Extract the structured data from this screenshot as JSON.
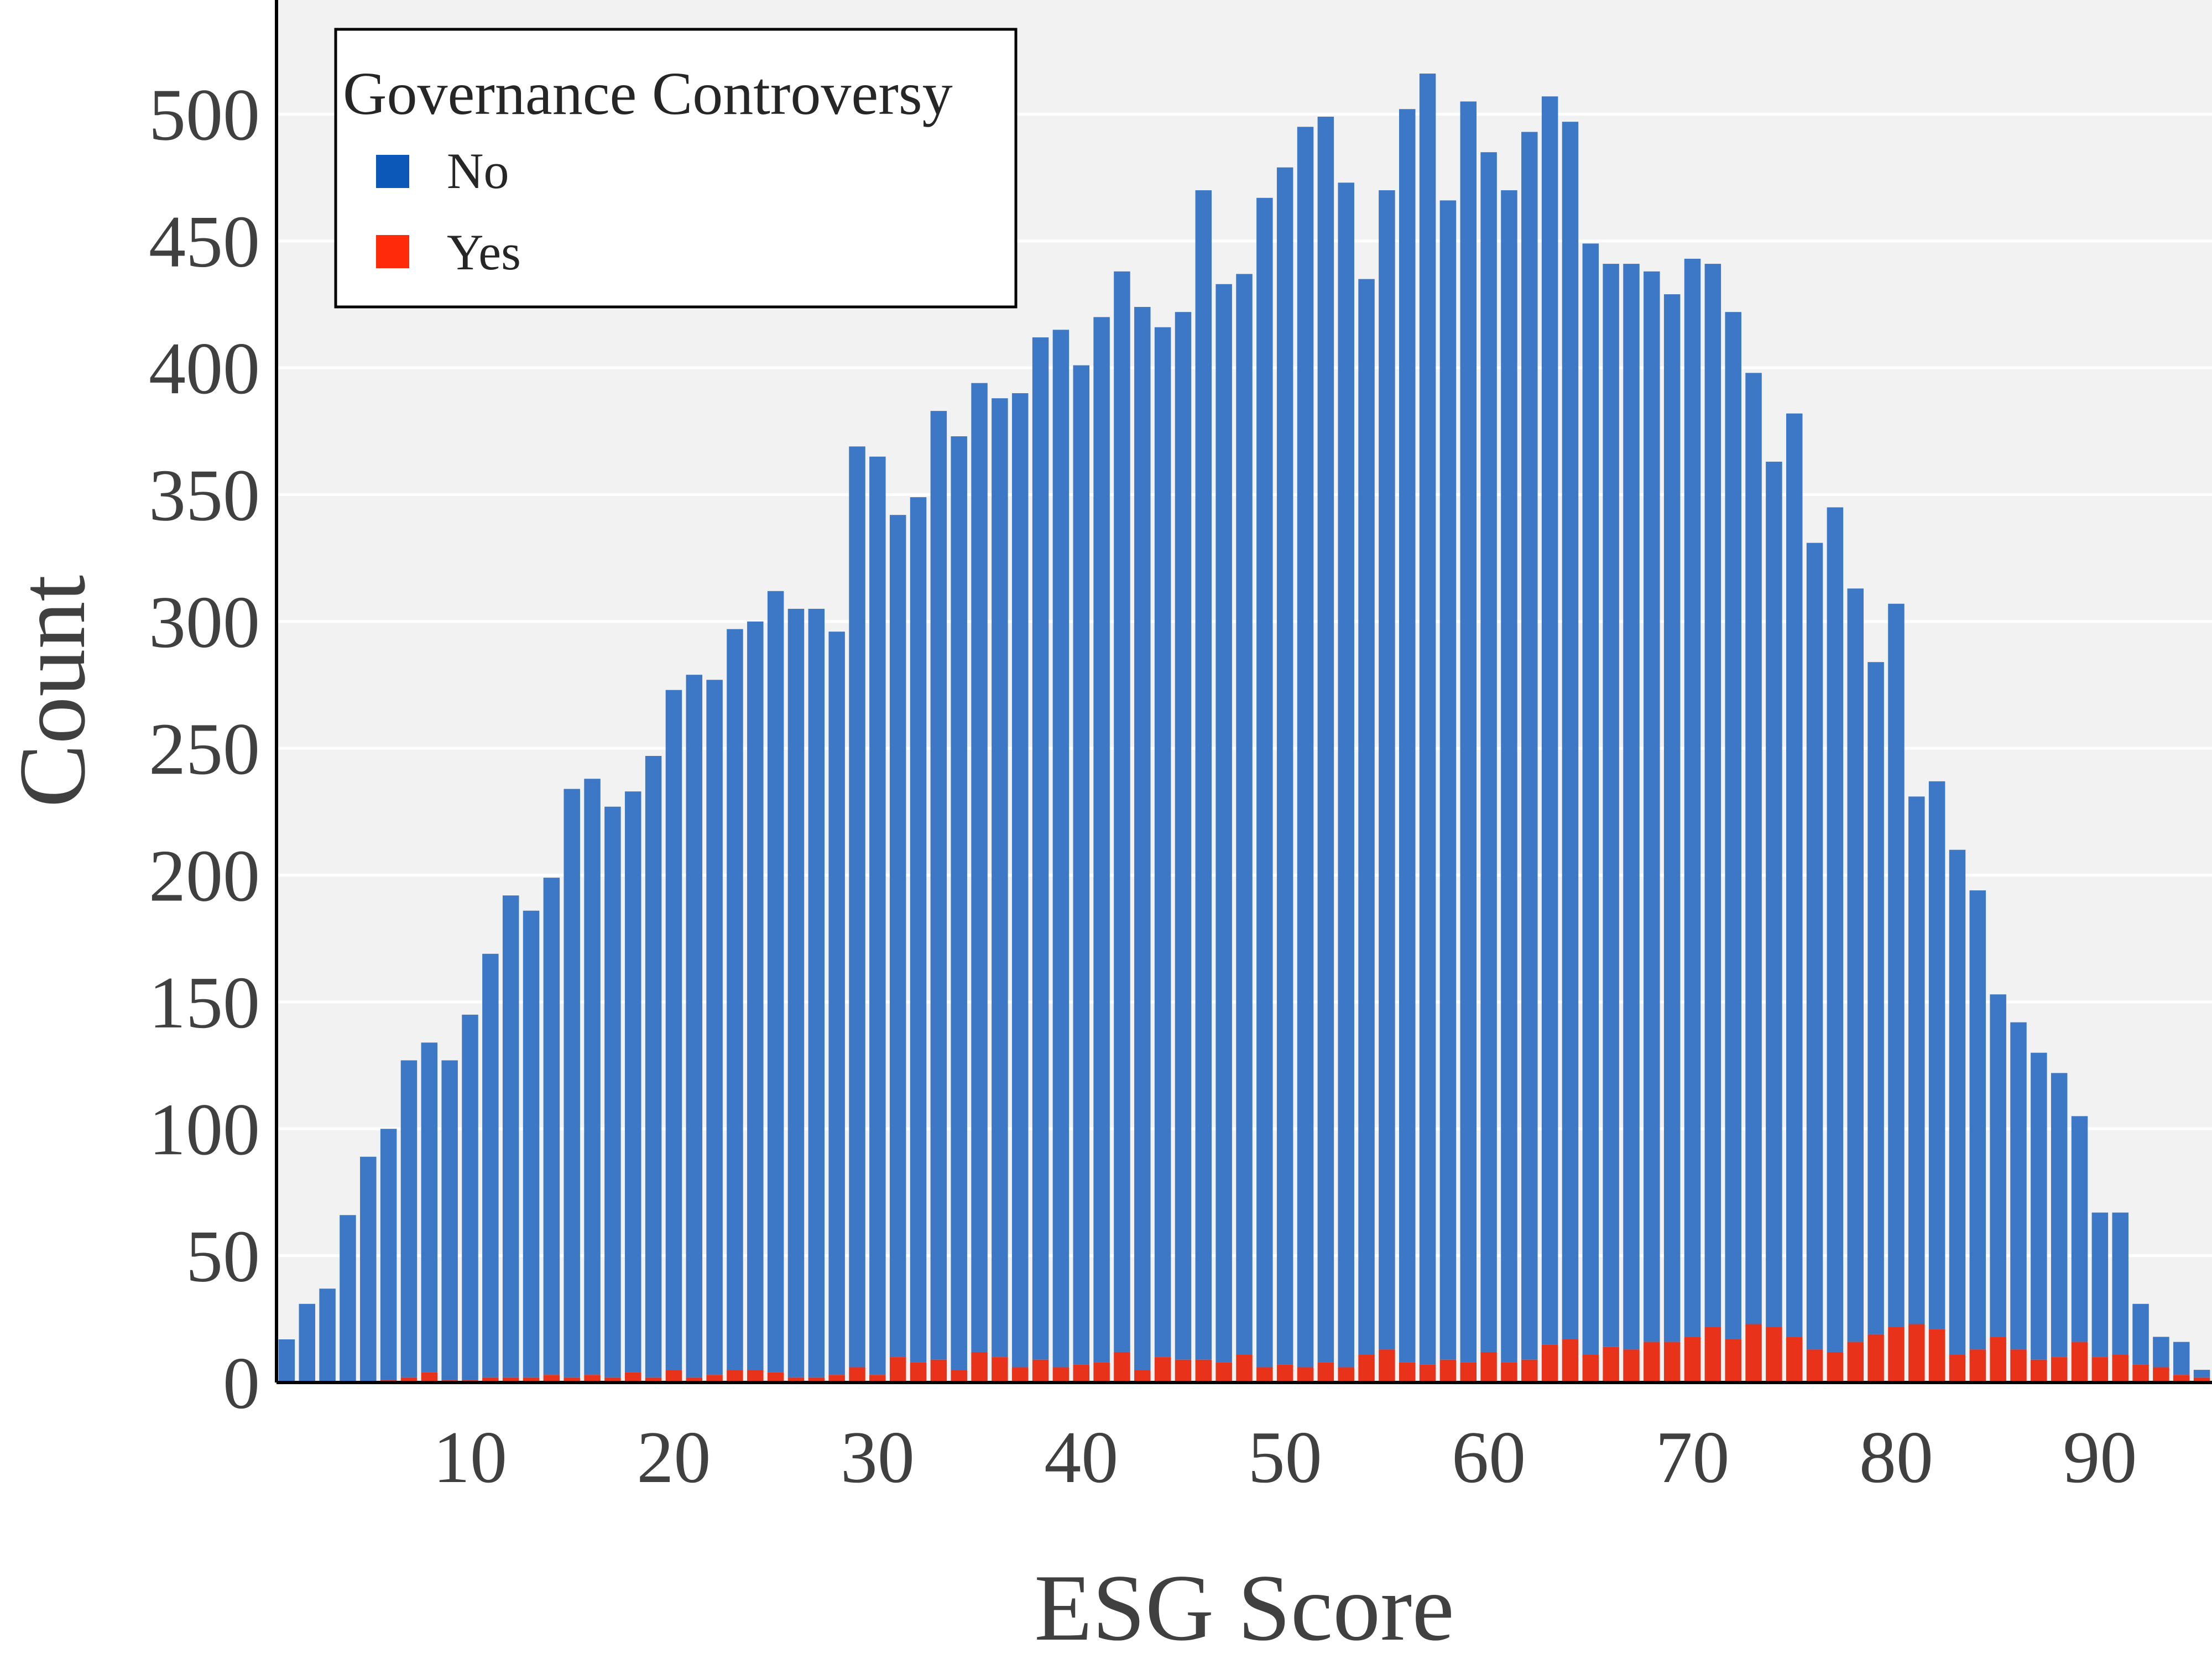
{
  "chart_data": {
    "type": "bar",
    "stacked": true,
    "xlabel": "ESG Score",
    "ylabel": "Count",
    "xlim": [
      0.5,
      95.5
    ],
    "ylim": [
      0,
      545
    ],
    "x_ticks": [
      10,
      20,
      30,
      40,
      50,
      60,
      70,
      80,
      90
    ],
    "y_ticks": [
      0,
      50,
      100,
      150,
      200,
      250,
      300,
      350,
      400,
      450,
      500
    ],
    "grid": true,
    "legend": {
      "title": "Governance Controversy",
      "placement": "top-left"
    },
    "x": [
      1,
      2,
      3,
      4,
      5,
      6,
      7,
      8,
      9,
      10,
      11,
      12,
      13,
      14,
      15,
      16,
      17,
      18,
      19,
      20,
      21,
      22,
      23,
      24,
      25,
      26,
      27,
      28,
      29,
      30,
      31,
      32,
      33,
      34,
      35,
      36,
      37,
      38,
      39,
      40,
      41,
      42,
      43,
      44,
      45,
      46,
      47,
      48,
      49,
      50,
      51,
      52,
      53,
      54,
      55,
      56,
      57,
      58,
      59,
      60,
      61,
      62,
      63,
      64,
      65,
      66,
      67,
      68,
      69,
      70,
      71,
      72,
      73,
      74,
      75,
      76,
      77,
      78,
      79,
      80,
      81,
      82,
      83,
      84,
      85,
      86,
      87,
      88,
      89,
      90,
      91,
      92,
      93,
      94,
      95
    ],
    "series": [
      {
        "name": "Yes",
        "color": "#e8321a",
        "values": [
          0,
          0,
          0,
          0,
          0,
          1,
          2,
          4,
          1,
          1,
          2,
          2,
          2,
          3,
          2,
          3,
          2,
          4,
          2,
          5,
          2,
          3,
          5,
          5,
          4,
          2,
          2,
          3,
          6,
          3,
          10,
          8,
          9,
          5,
          12,
          10,
          6,
          9,
          6,
          7,
          8,
          12,
          5,
          10,
          9,
          9,
          8,
          11,
          6,
          7,
          6,
          8,
          6,
          11,
          13,
          8,
          7,
          9,
          8,
          12,
          8,
          9,
          15,
          17,
          11,
          14,
          13,
          16,
          16,
          18,
          22,
          17,
          23,
          22,
          18,
          13,
          12,
          16,
          19,
          22,
          23,
          21,
          11,
          13,
          18,
          13,
          9,
          10,
          16,
          10,
          11,
          7,
          6,
          3,
          2
        ]
      },
      {
        "name": "No",
        "color": "#3c78c6",
        "values": [
          17,
          31,
          37,
          66,
          89,
          99,
          125,
          130,
          126,
          144,
          167,
          190,
          184,
          196,
          232,
          235,
          225,
          229,
          245,
          268,
          277,
          274,
          292,
          295,
          308,
          303,
          303,
          293,
          363,
          362,
          332,
          341,
          374,
          368,
          382,
          378,
          384,
          403,
          409,
          394,
          412,
          426,
          419,
          406,
          413,
          461,
          425,
          426,
          461,
          472,
          489,
          491,
          467,
          424,
          457,
          494,
          509,
          457,
          497,
          473,
          462,
          484,
          492,
          480,
          438,
          427,
          428,
          422,
          413,
          425,
          419,
          405,
          375,
          341,
          364,
          318,
          333,
          297,
          265,
          285,
          208,
          216,
          199,
          181,
          135,
          129,
          121,
          112,
          89,
          57,
          56,
          24,
          12,
          13,
          3
        ]
      }
    ]
  }
}
